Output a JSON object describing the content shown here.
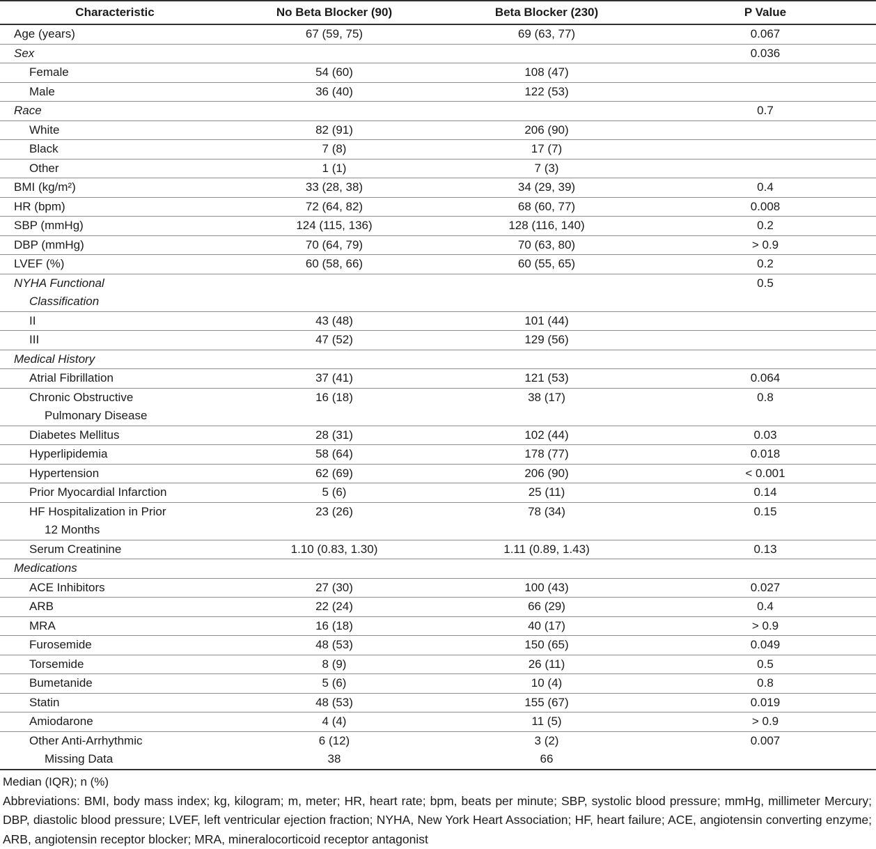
{
  "colors": {
    "text": "#1b1b1b",
    "rule_light": "#8c8c8c",
    "rule_dark": "#2f2f2f",
    "background": "#ffffff"
  },
  "table": {
    "columns": [
      "Characteristic",
      "No Beta Blocker (90)",
      "Beta Blocker (230)",
      "P Value"
    ],
    "rows": [
      {
        "lines": [
          {
            "text": "Age (years)",
            "indent": 0
          }
        ],
        "italic": false,
        "values": [
          "67 (59, 75)",
          "69 (63, 77)",
          "0.067"
        ]
      },
      {
        "lines": [
          {
            "text": "Sex",
            "indent": 0
          }
        ],
        "italic": true,
        "values": [
          "",
          "",
          "0.036"
        ]
      },
      {
        "lines": [
          {
            "text": "Female",
            "indent": 1
          }
        ],
        "italic": false,
        "values": [
          "54 (60)",
          "108 (47)",
          ""
        ]
      },
      {
        "lines": [
          {
            "text": "Male",
            "indent": 1
          }
        ],
        "italic": false,
        "values": [
          "36 (40)",
          "122 (53)",
          ""
        ]
      },
      {
        "lines": [
          {
            "text": "Race",
            "indent": 0
          }
        ],
        "italic": true,
        "values": [
          "",
          "",
          "0.7"
        ]
      },
      {
        "lines": [
          {
            "text": "White",
            "indent": 1
          }
        ],
        "italic": false,
        "values": [
          "82 (91)",
          "206 (90)",
          ""
        ]
      },
      {
        "lines": [
          {
            "text": "Black",
            "indent": 1
          }
        ],
        "italic": false,
        "values": [
          "7 (8)",
          "17 (7)",
          ""
        ]
      },
      {
        "lines": [
          {
            "text": "Other",
            "indent": 1
          }
        ],
        "italic": false,
        "values": [
          "1 (1)",
          "7 (3)",
          ""
        ]
      },
      {
        "lines": [
          {
            "text": "BMI (kg/m²)",
            "indent": 0
          }
        ],
        "italic": false,
        "values": [
          "33 (28, 38)",
          "34 (29, 39)",
          "0.4"
        ]
      },
      {
        "lines": [
          {
            "text": "HR (bpm)",
            "indent": 0
          }
        ],
        "italic": false,
        "values": [
          "72 (64, 82)",
          "68 (60, 77)",
          "0.008"
        ]
      },
      {
        "lines": [
          {
            "text": "SBP (mmHg)",
            "indent": 0
          }
        ],
        "italic": false,
        "values": [
          "124 (115, 136)",
          "128 (116, 140)",
          "0.2"
        ]
      },
      {
        "lines": [
          {
            "text": "DBP (mmHg)",
            "indent": 0
          }
        ],
        "italic": false,
        "values": [
          "70 (64, 79)",
          "70 (63, 80)",
          "> 0.9"
        ]
      },
      {
        "lines": [
          {
            "text": "LVEF (%)",
            "indent": 0
          }
        ],
        "italic": false,
        "values": [
          "60 (58, 66)",
          "60 (55, 65)",
          "0.2"
        ]
      },
      {
        "lines": [
          {
            "text": "NYHA Functional",
            "indent": 0
          },
          {
            "text": "Classification",
            "indent": 1
          }
        ],
        "italic": true,
        "values": [
          "",
          "",
          "0.5"
        ]
      },
      {
        "lines": [
          {
            "text": "II",
            "indent": 1
          }
        ],
        "italic": false,
        "values": [
          "43 (48)",
          "101 (44)",
          ""
        ]
      },
      {
        "lines": [
          {
            "text": "III",
            "indent": 1
          }
        ],
        "italic": false,
        "values": [
          "47 (52)",
          "129 (56)",
          ""
        ]
      },
      {
        "lines": [
          {
            "text": "Medical History",
            "indent": 0
          }
        ],
        "italic": true,
        "values": [
          "",
          "",
          ""
        ]
      },
      {
        "lines": [
          {
            "text": "Atrial Fibrillation",
            "indent": 1
          }
        ],
        "italic": false,
        "values": [
          "37 (41)",
          "121 (53)",
          "0.064"
        ]
      },
      {
        "lines": [
          {
            "text": "Chronic Obstructive",
            "indent": 1
          },
          {
            "text": "Pulmonary Disease",
            "indent": 2
          }
        ],
        "italic": false,
        "values": [
          "16 (18)",
          "38 (17)",
          "0.8"
        ]
      },
      {
        "lines": [
          {
            "text": "Diabetes Mellitus",
            "indent": 1
          }
        ],
        "italic": false,
        "values": [
          "28 (31)",
          "102 (44)",
          "0.03"
        ]
      },
      {
        "lines": [
          {
            "text": "Hyperlipidemia",
            "indent": 1
          }
        ],
        "italic": false,
        "values": [
          "58 (64)",
          "178 (77)",
          "0.018"
        ]
      },
      {
        "lines": [
          {
            "text": "Hypertension",
            "indent": 1
          }
        ],
        "italic": false,
        "values": [
          "62 (69)",
          "206 (90)",
          "< 0.001"
        ]
      },
      {
        "lines": [
          {
            "text": "Prior Myocardial Infarction",
            "indent": 1
          }
        ],
        "italic": false,
        "values": [
          "5 (6)",
          "25 (11)",
          "0.14"
        ]
      },
      {
        "lines": [
          {
            "text": "HF Hospitalization in Prior",
            "indent": 1
          },
          {
            "text": "12 Months",
            "indent": 2
          }
        ],
        "italic": false,
        "values": [
          "23 (26)",
          "78 (34)",
          "0.15"
        ]
      },
      {
        "lines": [
          {
            "text": "Serum Creatinine",
            "indent": 1
          }
        ],
        "italic": false,
        "values": [
          "1.10 (0.83, 1.30)",
          "1.11 (0.89, 1.43)",
          "0.13"
        ]
      },
      {
        "lines": [
          {
            "text": "Medications",
            "indent": 0
          }
        ],
        "italic": true,
        "values": [
          "",
          "",
          ""
        ]
      },
      {
        "lines": [
          {
            "text": "ACE Inhibitors",
            "indent": 1
          }
        ],
        "italic": false,
        "values": [
          "27 (30)",
          "100 (43)",
          "0.027"
        ]
      },
      {
        "lines": [
          {
            "text": "ARB",
            "indent": 1
          }
        ],
        "italic": false,
        "values": [
          "22 (24)",
          "66 (29)",
          "0.4"
        ]
      },
      {
        "lines": [
          {
            "text": "MRA",
            "indent": 1
          }
        ],
        "italic": false,
        "values": [
          "16 (18)",
          "40 (17)",
          "> 0.9"
        ]
      },
      {
        "lines": [
          {
            "text": "Furosemide",
            "indent": 1
          }
        ],
        "italic": false,
        "values": [
          "48 (53)",
          "150 (65)",
          "0.049"
        ]
      },
      {
        "lines": [
          {
            "text": "Torsemide",
            "indent": 1
          }
        ],
        "italic": false,
        "values": [
          "8 (9)",
          "26 (11)",
          "0.5"
        ]
      },
      {
        "lines": [
          {
            "text": "Bumetanide",
            "indent": 1
          }
        ],
        "italic": false,
        "values": [
          "5 (6)",
          "10 (4)",
          "0.8"
        ]
      },
      {
        "lines": [
          {
            "text": "Statin",
            "indent": 1
          }
        ],
        "italic": false,
        "values": [
          "48 (53)",
          "155 (67)",
          "0.019"
        ]
      },
      {
        "lines": [
          {
            "text": "Amiodarone",
            "indent": 1
          }
        ],
        "italic": false,
        "values": [
          "4 (4)",
          "11 (5)",
          "> 0.9"
        ]
      },
      {
        "lines": [
          {
            "text": "Other Anti-Arrhythmic",
            "indent": 1
          }
        ],
        "italic": false,
        "values": [
          "6 (12)",
          "3 (2)",
          "0.007"
        ],
        "no_bottom_border": true
      },
      {
        "lines": [
          {
            "text": "Missing Data",
            "indent": 2
          }
        ],
        "italic": false,
        "values": [
          "38",
          "66",
          ""
        ]
      }
    ]
  },
  "footer": {
    "note": "Median (IQR); n (%)",
    "abbreviations": "Abbreviations: BMI, body mass index; kg, kilogram; m, meter; HR, heart rate; bpm, beats per minute; SBP, systolic blood pressure; mmHg, millimeter Mercury; DBP, diastolic blood pressure; LVEF, left ventricular ejection fraction; NYHA, New York Heart Association; HF, heart failure; ACE, angiotensin converting enzyme; ARB, angiotensin receptor blocker; MRA, mineralocorticoid receptor antagonist"
  }
}
